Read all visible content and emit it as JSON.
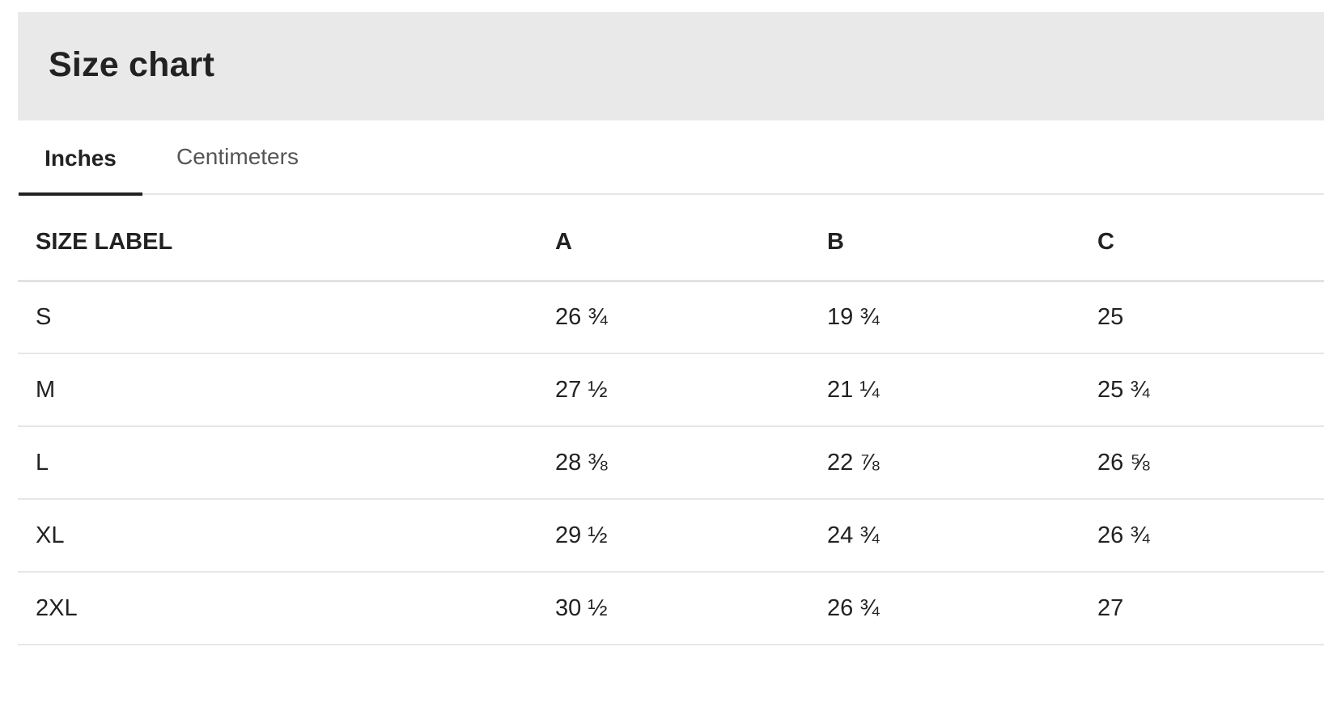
{
  "header": {
    "title": "Size chart"
  },
  "tabs": [
    {
      "label": "Inches",
      "active": true
    },
    {
      "label": "Centimeters",
      "active": false
    }
  ],
  "table": {
    "columns": [
      "SIZE LABEL",
      "A",
      "B",
      "C"
    ],
    "rows": [
      [
        "S",
        "26 ¾",
        "19 ¾",
        "25"
      ],
      [
        "M",
        "27 ½",
        "21 ¼",
        "25 ¾"
      ],
      [
        "L",
        "28 ⅜",
        "22 ⅞",
        "26 ⅝"
      ],
      [
        "XL",
        "29 ½",
        "24 ¾",
        "26 ¾"
      ],
      [
        "2XL",
        "30 ½",
        "26 ¾",
        "27"
      ]
    ]
  },
  "colors": {
    "header_bg": "#e9e9e9",
    "text": "#222222",
    "tab_inactive": "#555555",
    "divider": "#e6e6e6"
  }
}
